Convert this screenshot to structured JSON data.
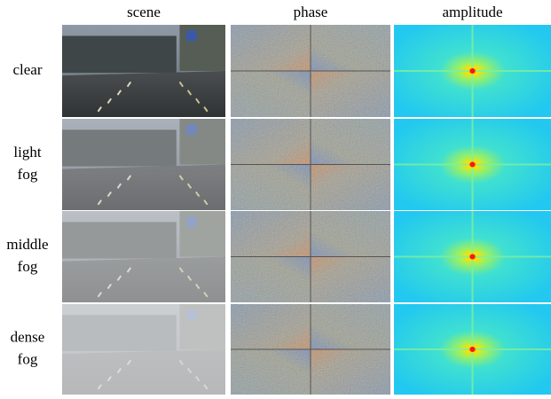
{
  "header": {
    "columns": [
      "scene",
      "phase",
      "amplitude"
    ]
  },
  "rows": [
    {
      "label": [
        "clear"
      ]
    },
    {
      "label": [
        "light",
        "fog"
      ]
    },
    {
      "label": [
        "middle",
        "fog"
      ]
    },
    {
      "label": [
        "dense",
        "fog"
      ]
    }
  ]
}
